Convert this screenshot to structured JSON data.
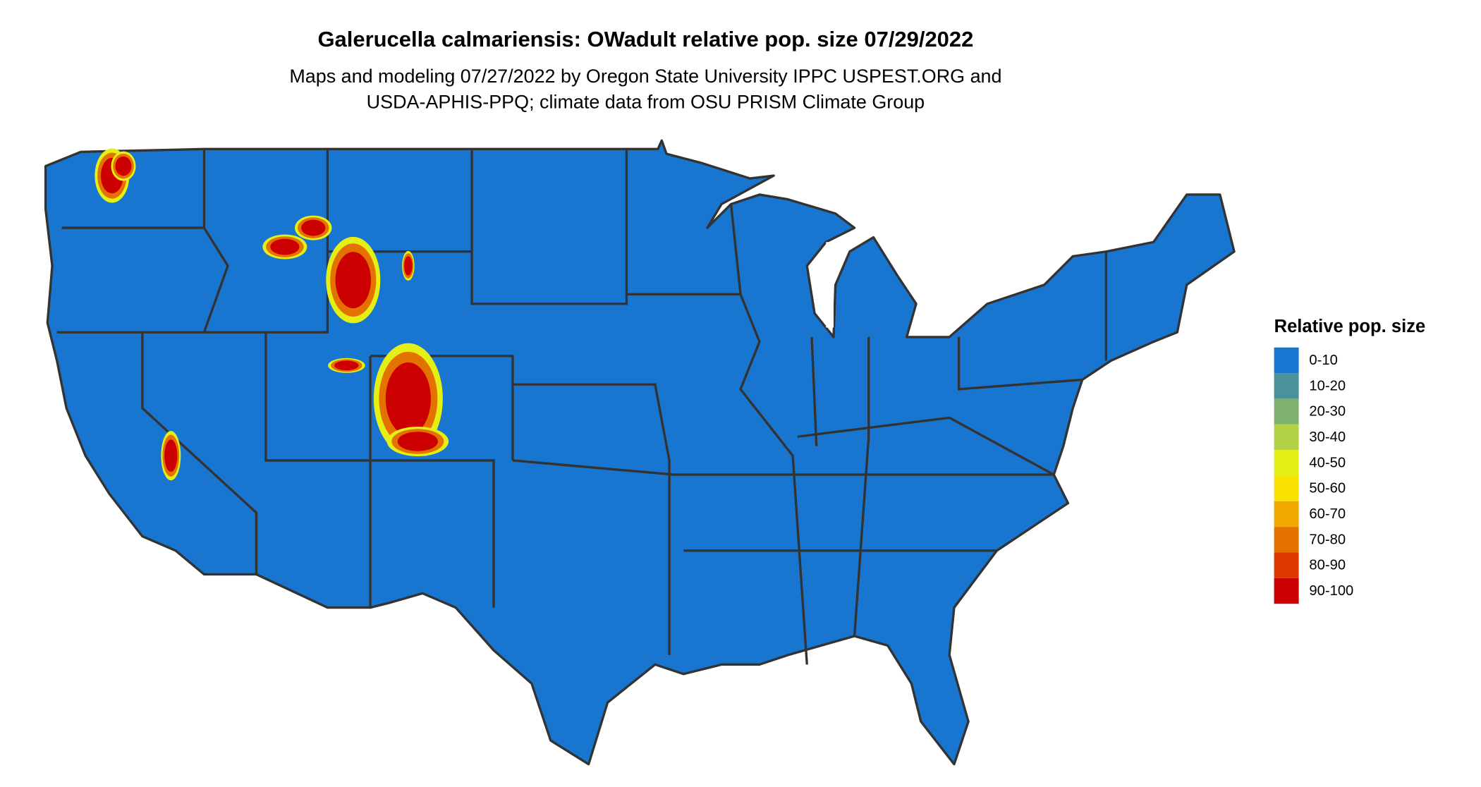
{
  "title": "Galerucella calmariensis: OWadult relative pop. size 07/29/2022",
  "subtitle_lines": [
    "Maps and modeling 07/27/2022 by Oregon State University IPPC USPEST.ORG and",
    "USDA-APHIS-PPQ; climate data from OSU PRISM Climate Group"
  ],
  "legend": {
    "title": "Relative pop. size",
    "items": [
      {
        "label": "0-10",
        "color": "#1976d0"
      },
      {
        "label": "10-20",
        "color": "#4a919c"
      },
      {
        "label": "20-30",
        "color": "#7fb070"
      },
      {
        "label": "30-40",
        "color": "#b3d145"
      },
      {
        "label": "40-50",
        "color": "#e4f015"
      },
      {
        "label": "50-60",
        "color": "#f8e100"
      },
      {
        "label": "60-70",
        "color": "#f0a800"
      },
      {
        "label": "70-80",
        "color": "#e47200"
      },
      {
        "label": "80-90",
        "color": "#dc3800"
      },
      {
        "label": "90-100",
        "color": "#cc0000"
      }
    ]
  },
  "map": {
    "region": "contiguous United States",
    "base_color": "#1976d0",
    "border_color": "#333333",
    "hotspot_color": "#cc0000"
  }
}
